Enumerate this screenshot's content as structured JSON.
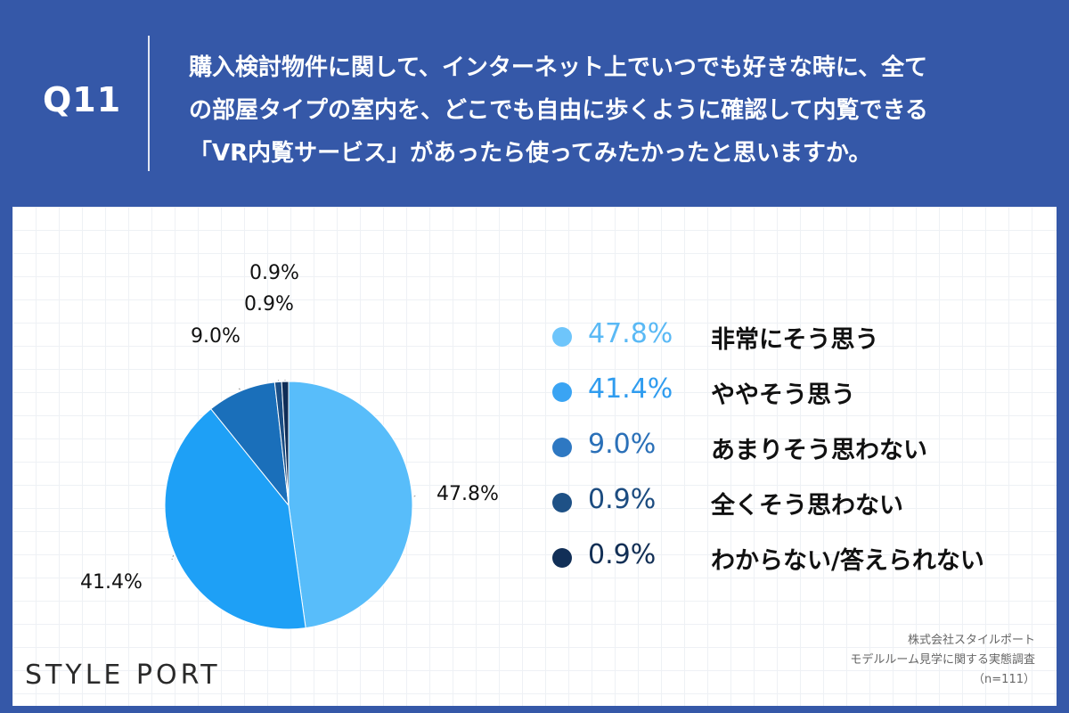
{
  "header": {
    "q_label": "Q11",
    "question_lines": [
      "購入検討物件に関して、インターネット上でいつでも好きな時に、全て",
      "の部屋タイプの室内を、どこでも自由に歩くように確認して内覧できる",
      "「VR内覧サービス」があったら使ってみたかったと思いますか。"
    ]
  },
  "chart_data": {
    "type": "pie",
    "start": "12 o'clock, clockwise",
    "series": [
      {
        "name": "非常にそう思う",
        "value": 47.8,
        "label": "47.8%",
        "color": "#58bdfa"
      },
      {
        "name": "ややそう思う",
        "value": 41.4,
        "label": "41.4%",
        "color": "#1ea0f6"
      },
      {
        "name": "あまりそう思わない",
        "value": 9.0,
        "label": "9.0%",
        "color": "#1a6fba"
      },
      {
        "name": "全くそう思わない",
        "value": 0.9,
        "label": "0.9%",
        "color": "#1b4f86"
      },
      {
        "name": "わからない/答えられない",
        "value": 0.9,
        "label": "0.9%",
        "color": "#0f2d57"
      }
    ],
    "legend_placement": "right"
  },
  "legend": {
    "colors": [
      "#6ec5fb",
      "#3aa4f3",
      "#2e78c2",
      "#1e5186",
      "#112f57"
    ],
    "pct_colors": [
      "#5ab9f5",
      "#2f9cef",
      "#2a70b8",
      "#1c4c80",
      "#122f55"
    ]
  },
  "brand": {
    "logo": "STYLE PORT"
  },
  "source": {
    "company": "株式会社スタイルポート",
    "survey": "モデルルーム見学に関する実態調査",
    "n": "（n=111）"
  }
}
